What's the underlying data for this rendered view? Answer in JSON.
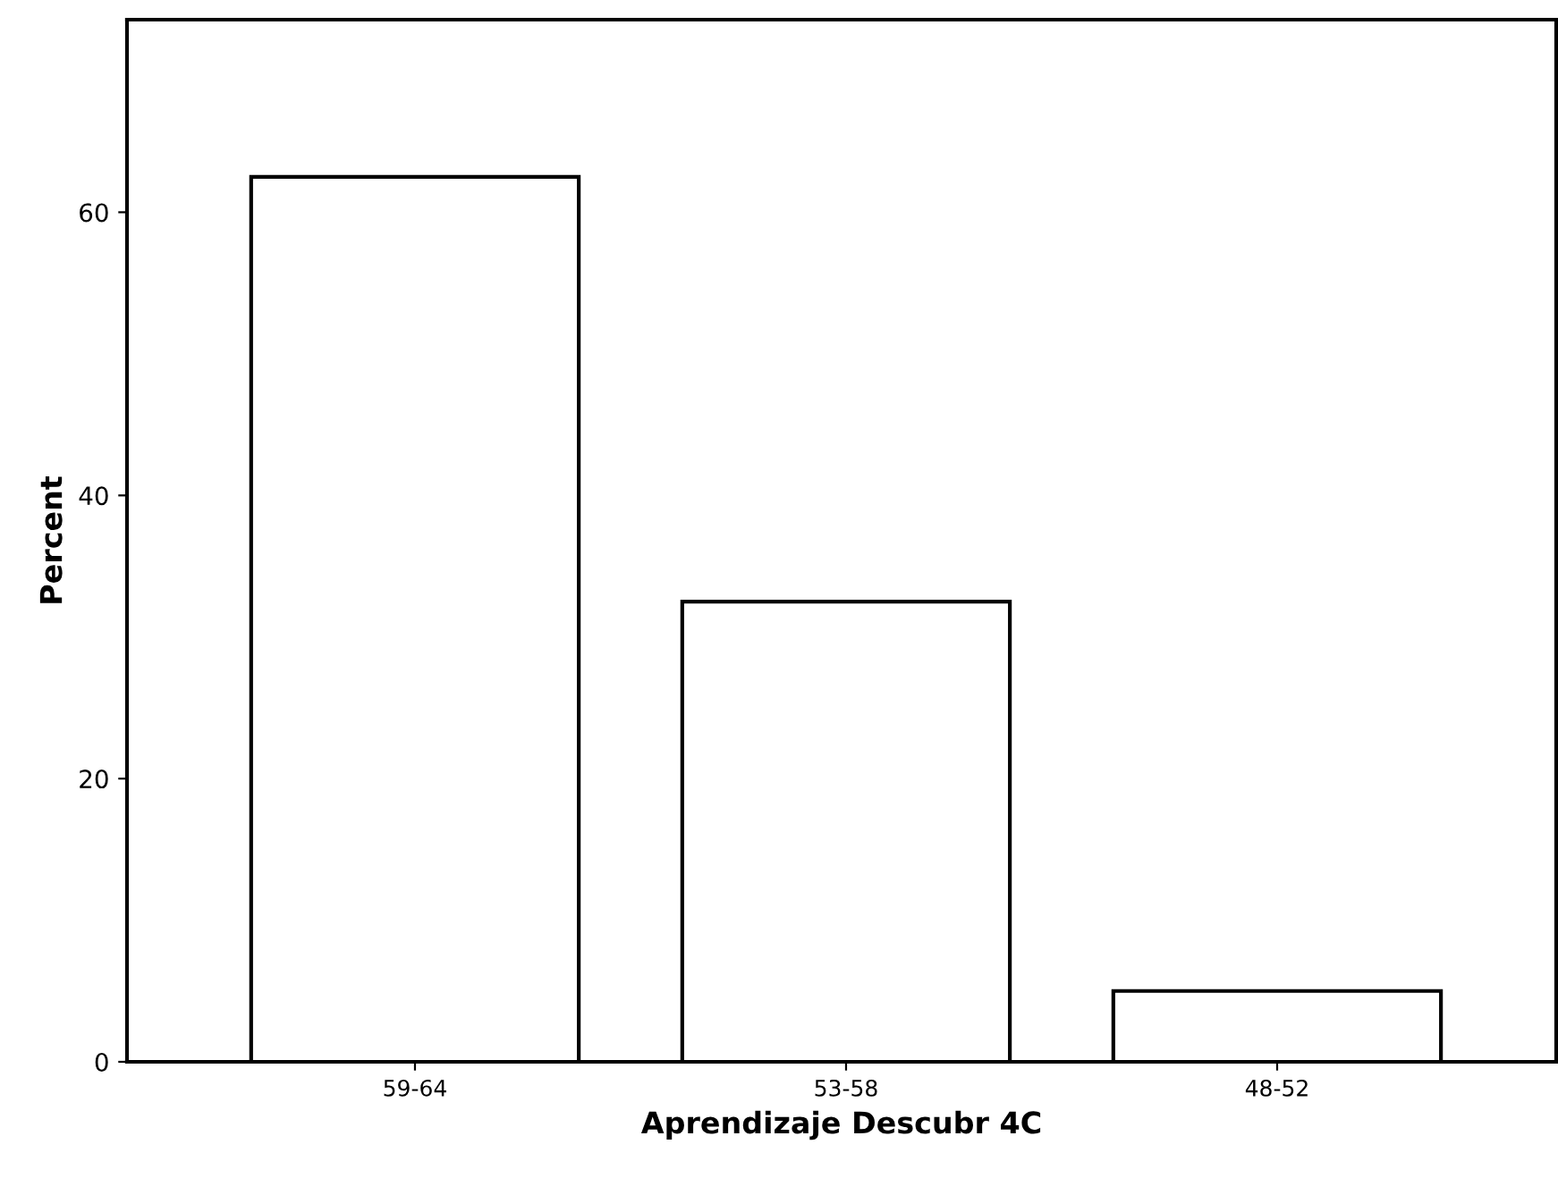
{
  "chart_data": {
    "type": "bar",
    "xlabel": "Aprendizaje Descubr 4C",
    "ylabel": "Percent",
    "categories": [
      "59-64",
      "53-58",
      "48-52"
    ],
    "values": [
      62.5,
      32.5,
      5.0
    ],
    "color": "#ffffff",
    "ylim": [
      0,
      73.6
    ],
    "yticks": [
      0,
      20,
      40,
      60
    ],
    "grid": false
  }
}
